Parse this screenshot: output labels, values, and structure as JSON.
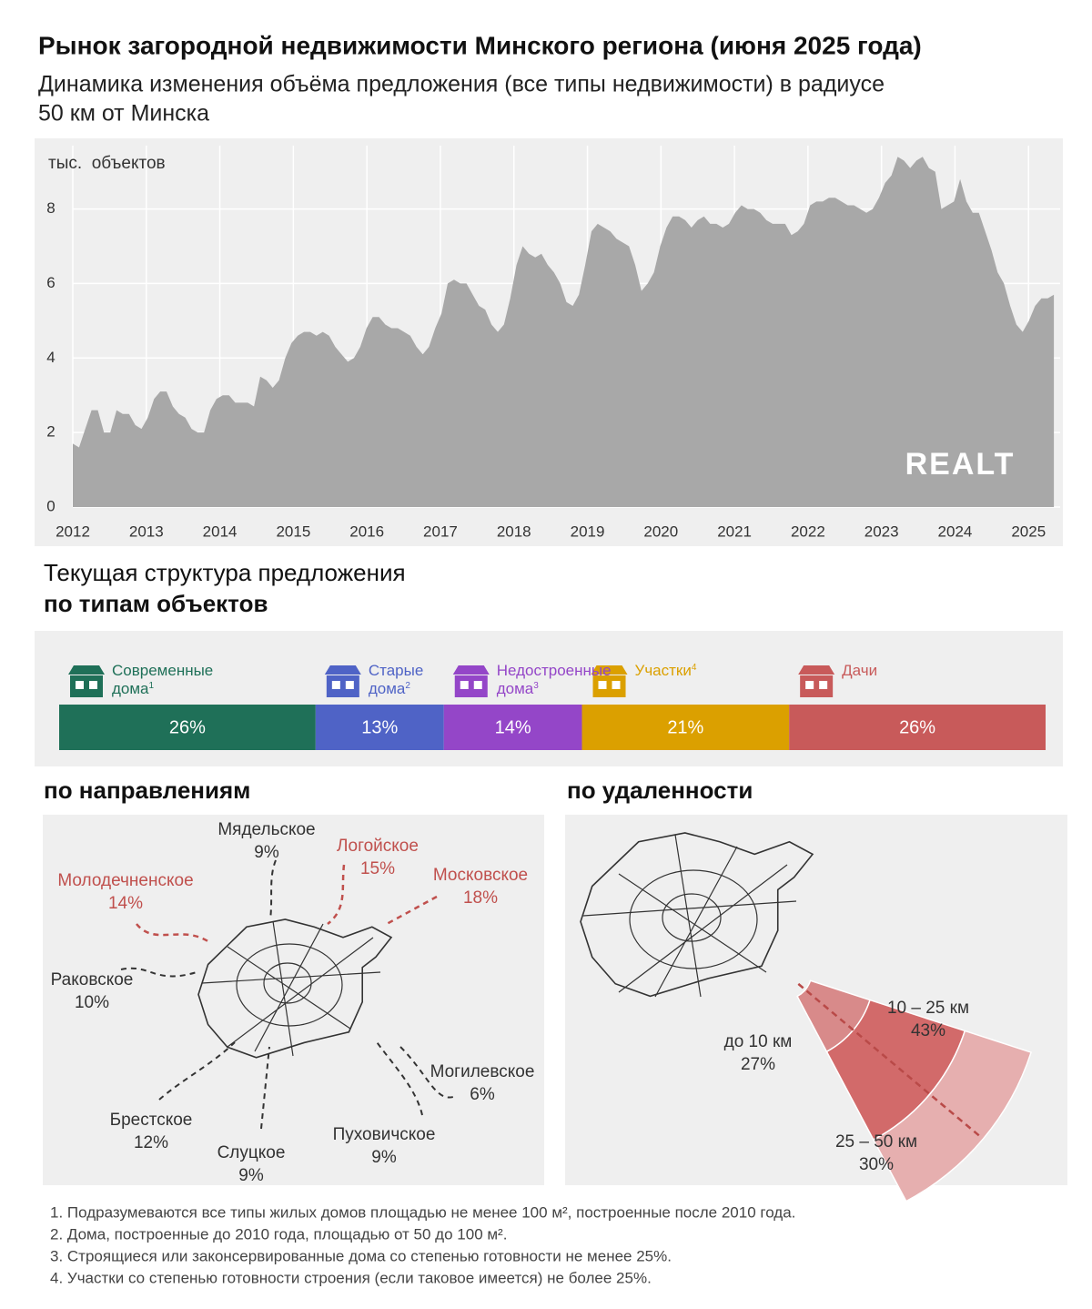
{
  "title": "Рынок загородной недвижимости Минского региона  (июня 2025 года)",
  "subtitle": [
    "Динамика изменения объёма предложения (все типы недвижимости) в радиусе",
    "50 км от Минска"
  ],
  "chart_data": [
    {
      "type": "area",
      "y_label": "тыс.  объектов",
      "logo": "REALT",
      "color": "#a8a8a8",
      "grid": true,
      "xlim": [
        2012,
        2025.43
      ],
      "xticks": [
        2012,
        2013,
        2014,
        2015,
        2016,
        2017,
        2018,
        2019,
        2020,
        2021,
        2022,
        2023,
        2024,
        2025
      ],
      "ylim": [
        0,
        9.7
      ],
      "yticks": [
        0,
        2,
        4,
        6,
        8
      ],
      "x": [
        2012,
        2012.085,
        2012.17,
        2012.255,
        2012.34,
        2012.425,
        2012.51,
        2012.595,
        2012.68,
        2012.765,
        2012.85,
        2012.935,
        2013.02,
        2013.105,
        2013.19,
        2013.275,
        2013.36,
        2013.445,
        2013.53,
        2013.615,
        2013.7,
        2013.785,
        2013.87,
        2013.955,
        2014.04,
        2014.125,
        2014.21,
        2014.295,
        2014.38,
        2014.465,
        2014.55,
        2014.635,
        2014.72,
        2014.805,
        2014.89,
        2014.975,
        2015.06,
        2015.145,
        2015.23,
        2015.315,
        2015.4,
        2015.485,
        2015.57,
        2015.655,
        2015.74,
        2015.825,
        2015.91,
        2015.995,
        2016.08,
        2016.165,
        2016.25,
        2016.335,
        2016.42,
        2016.505,
        2016.59,
        2016.675,
        2016.76,
        2016.845,
        2016.93,
        2017.015,
        2017.1,
        2017.185,
        2017.27,
        2017.355,
        2017.44,
        2017.525,
        2017.61,
        2017.695,
        2017.78,
        2017.865,
        2017.95,
        2018.035,
        2018.12,
        2018.205,
        2018.29,
        2018.375,
        2018.46,
        2018.545,
        2018.63,
        2018.715,
        2018.8,
        2018.885,
        2018.97,
        2019.055,
        2019.14,
        2019.225,
        2019.31,
        2019.395,
        2019.48,
        2019.565,
        2019.65,
        2019.735,
        2019.82,
        2019.905,
        2019.99,
        2020.075,
        2020.16,
        2020.245,
        2020.33,
        2020.415,
        2020.5,
        2020.585,
        2020.67,
        2020.755,
        2020.84,
        2020.925,
        2021.01,
        2021.095,
        2021.18,
        2021.265,
        2021.35,
        2021.435,
        2021.52,
        2021.605,
        2021.69,
        2021.775,
        2021.86,
        2021.945,
        2022.03,
        2022.115,
        2022.2,
        2022.285,
        2022.37,
        2022.455,
        2022.54,
        2022.625,
        2022.71,
        2022.795,
        2022.88,
        2022.965,
        2023.05,
        2023.135,
        2023.22,
        2023.305,
        2023.39,
        2023.475,
        2023.56,
        2023.645,
        2023.73,
        2023.815,
        2023.9,
        2023.985,
        2024.07,
        2024.155,
        2024.24,
        2024.325,
        2024.41,
        2024.495,
        2024.58,
        2024.665,
        2024.75,
        2024.835,
        2024.92,
        2025.005,
        2025.09,
        2025.175,
        2025.26,
        2025.345
      ],
      "values": [
        1.7,
        1.6,
        2.1,
        2.6,
        2.6,
        2.0,
        2.0,
        2.6,
        2.5,
        2.5,
        2.2,
        2.1,
        2.4,
        2.9,
        3.1,
        3.1,
        2.7,
        2.5,
        2.4,
        2.1,
        2.0,
        2.0,
        2.6,
        2.9,
        3.0,
        3.0,
        2.8,
        2.8,
        2.8,
        2.7,
        3.5,
        3.4,
        3.2,
        3.4,
        4.0,
        4.4,
        4.6,
        4.7,
        4.7,
        4.6,
        4.7,
        4.6,
        4.3,
        4.1,
        3.9,
        4.0,
        4.3,
        4.8,
        5.1,
        5.1,
        4.9,
        4.8,
        4.8,
        4.7,
        4.6,
        4.3,
        4.1,
        4.3,
        4.8,
        5.2,
        6.0,
        6.1,
        6.0,
        6.0,
        5.7,
        5.4,
        5.3,
        4.9,
        4.7,
        4.9,
        5.6,
        6.5,
        7.0,
        6.8,
        6.7,
        6.8,
        6.5,
        6.3,
        6.0,
        5.5,
        5.4,
        5.7,
        6.5,
        7.4,
        7.6,
        7.5,
        7.4,
        7.2,
        7.1,
        7.0,
        6.5,
        5.8,
        6.0,
        6.3,
        7.0,
        7.5,
        7.8,
        7.8,
        7.7,
        7.5,
        7.7,
        7.8,
        7.6,
        7.6,
        7.5,
        7.6,
        7.9,
        8.1,
        8.0,
        8.0,
        7.9,
        7.7,
        7.6,
        7.6,
        7.6,
        7.3,
        7.4,
        7.6,
        8.1,
        8.2,
        8.2,
        8.3,
        8.3,
        8.2,
        8.1,
        8.1,
        8.0,
        7.9,
        8.0,
        8.3,
        8.7,
        8.9,
        9.4,
        9.3,
        9.1,
        9.3,
        9.4,
        9.1,
        9.0,
        8.0,
        8.1,
        8.2,
        8.8,
        8.2,
        7.9,
        7.9,
        7.4,
        6.9,
        6.3,
        6.0,
        5.4,
        4.9,
        4.7,
        5.0,
        5.4,
        5.6,
        5.6,
        5.7
      ]
    },
    {
      "type": "stacked_bar",
      "title": "Текущая структура предложения",
      "subtitle": "по типам объектов",
      "series": [
        {
          "name": "Современные дома",
          "note": "1",
          "color": "#1f7058",
          "values": [
            26
          ],
          "value_labels": [
            "26%"
          ]
        },
        {
          "name": "Старые дома",
          "note": "2",
          "color": "#4f63c6",
          "values": [
            13
          ],
          "value_labels": [
            "13%"
          ]
        },
        {
          "name": "Недостроенные дома",
          "note": "3",
          "color": "#9446c8",
          "values": [
            14
          ],
          "value_labels": [
            "14%"
          ]
        },
        {
          "name": "Участки",
          "note": "4",
          "color": "#dba000",
          "values": [
            21
          ],
          "value_labels": [
            "21%"
          ]
        },
        {
          "name": "Дачи",
          "color": "#c85a5a",
          "values": [
            26
          ],
          "value_labels": [
            "26%"
          ]
        }
      ]
    },
    {
      "type": "map",
      "title": "по направлениям",
      "categories": [
        "Мядельское",
        "Логойское",
        "Московское",
        "Молодечненское",
        "Раковское",
        "Могилевское",
        "Пуховичское",
        "Слуцкое",
        "Брестское"
      ],
      "values": [
        9,
        15,
        18,
        14,
        10,
        6,
        9,
        9,
        12
      ],
      "value_labels": [
        "9%",
        "15%",
        "18%",
        "14%",
        "10%",
        "6%",
        "9%",
        "9%",
        "12%"
      ],
      "colors": [
        "#333333",
        "#c0504d",
        "#c0504d",
        "#c0504d",
        "#333333",
        "#333333",
        "#333333",
        "#333333",
        "#333333"
      ]
    },
    {
      "type": "sectors",
      "title": "по удаленности",
      "categories": [
        "до 10 км",
        "10 – 25 км",
        "25 – 50 км"
      ],
      "values": [
        27,
        43,
        30
      ],
      "value_labels": [
        "27%",
        "43%",
        "30%"
      ],
      "colors": [
        "#d88a8a",
        "#d26a6a",
        "#e6afaf"
      ]
    }
  ],
  "footnotes": [
    "1. Подразумеваются все типы жилых домов площадью не менее 100 м², построенные после 2010 года.",
    "2. Дома, построенные до 2010 года, площадью от 50 до 100 м².",
    "3. Строящиеся или законсервированные дома со степенью готовности не менее 25%.",
    "4. Участки со степенью готовности строения (если таковое имеется) не более 25%."
  ]
}
